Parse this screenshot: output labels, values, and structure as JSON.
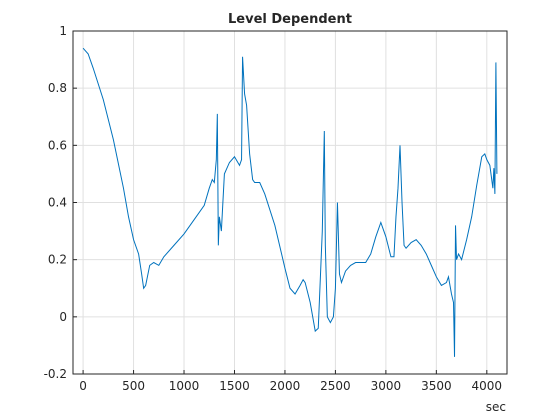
{
  "chart_data": {
    "type": "line",
    "title": "Level Dependent",
    "x_label": "sec",
    "x": [
      0,
      50,
      100,
      200,
      300,
      400,
      450,
      500,
      550,
      580,
      600,
      620,
      660,
      700,
      750,
      800,
      900,
      1000,
      1100,
      1200,
      1250,
      1280,
      1300,
      1320,
      1330,
      1340,
      1350,
      1370,
      1400,
      1450,
      1500,
      1550,
      1570,
      1580,
      1600,
      1620,
      1650,
      1680,
      1700,
      1750,
      1800,
      1900,
      2000,
      2050,
      2100,
      2150,
      2180,
      2200,
      2250,
      2300,
      2330,
      2370,
      2390,
      2400,
      2420,
      2450,
      2480,
      2500,
      2520,
      2540,
      2560,
      2600,
      2650,
      2700,
      2800,
      2850,
      2900,
      2950,
      3000,
      3050,
      3080,
      3100,
      3120,
      3140,
      3160,
      3180,
      3200,
      3250,
      3300,
      3350,
      3400,
      3450,
      3500,
      3550,
      3600,
      3620,
      3650,
      3670,
      3680,
      3690,
      3700,
      3720,
      3750,
      3800,
      3850,
      3900,
      3920,
      3950,
      3980,
      4000,
      4030,
      4060,
      4070,
      4080,
      4090,
      4100
    ],
    "series": [
      {
        "color": "#0072bd",
        "values": [
          0.94,
          0.92,
          0.87,
          0.76,
          0.62,
          0.45,
          0.35,
          0.27,
          0.22,
          0.15,
          0.1,
          0.11,
          0.18,
          0.19,
          0.18,
          0.21,
          0.25,
          0.29,
          0.34,
          0.39,
          0.45,
          0.48,
          0.47,
          0.55,
          0.71,
          0.25,
          0.35,
          0.3,
          0.5,
          0.54,
          0.56,
          0.53,
          0.55,
          0.91,
          0.78,
          0.74,
          0.57,
          0.48,
          0.47,
          0.47,
          0.43,
          0.32,
          0.17,
          0.1,
          0.08,
          0.11,
          0.13,
          0.12,
          0.05,
          -0.05,
          -0.04,
          0.3,
          0.65,
          0.25,
          0.0,
          -0.02,
          0.0,
          0.1,
          0.4,
          0.15,
          0.12,
          0.16,
          0.18,
          0.19,
          0.19,
          0.22,
          0.28,
          0.33,
          0.28,
          0.21,
          0.21,
          0.35,
          0.45,
          0.6,
          0.4,
          0.25,
          0.24,
          0.26,
          0.27,
          0.25,
          0.22,
          0.18,
          0.14,
          0.11,
          0.12,
          0.14,
          0.08,
          0.05,
          -0.14,
          0.32,
          0.2,
          0.22,
          0.2,
          0.27,
          0.35,
          0.46,
          0.5,
          0.56,
          0.57,
          0.55,
          0.53,
          0.45,
          0.52,
          0.43,
          0.89,
          0.5
        ]
      }
    ],
    "xlim": [
      -100,
      4200
    ],
    "xticks": [
      0,
      500,
      1000,
      1500,
      2000,
      2500,
      3000,
      3500,
      4000
    ],
    "ylim": [
      -0.2,
      1
    ],
    "yticks": [
      -0.2,
      0,
      0.2,
      0.4,
      0.6,
      0.8,
      1
    ],
    "grid": true
  }
}
